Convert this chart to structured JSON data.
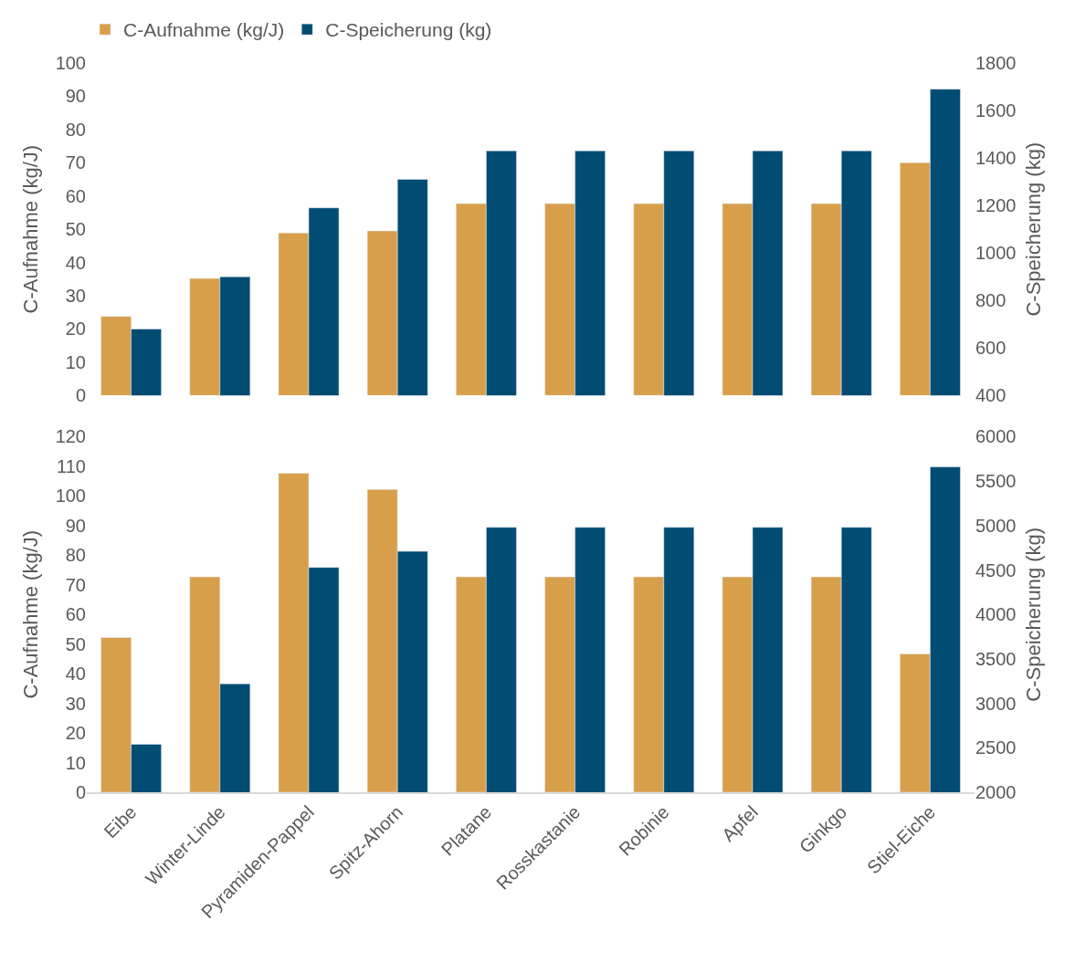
{
  "chart_data": [
    {
      "type": "bar",
      "categories": [
        "Eibe",
        "Winter-Linde",
        "Pyramiden-Pappel",
        "Spitz-Ahorn",
        "Platane",
        "Rosskastanie",
        "Robinie",
        "Apfel",
        "Ginkgo",
        "Stiel-Eiche"
      ],
      "series": [
        {
          "name": "C-Aufnahme (kg/J)",
          "color": "#d89f4b",
          "values": [
            23.8,
            35.2,
            48.9,
            49.5,
            57.7,
            57.7,
            57.7,
            57.7,
            57.7,
            70.0
          ]
        },
        {
          "name": "C-Speicherung (kg)",
          "color": "#004c73",
          "axis": "y2",
          "values": [
            680,
            900,
            1190,
            1310,
            1430,
            1430,
            1430,
            1430,
            1430,
            1690
          ]
        }
      ],
      "ylabel": "C-Aufnahme (kg/J)",
      "y2label": "C-Speicherung (kg)",
      "ylim": [
        0,
        100
      ],
      "yticks": [
        0,
        10,
        20,
        30,
        40,
        50,
        60,
        70,
        80,
        90,
        100
      ],
      "y2lim": [
        400,
        1800
      ],
      "y2ticks": [
        400,
        600,
        800,
        1000,
        1200,
        1400,
        1600,
        1800
      ],
      "tick_labels": "y",
      "legend": "top left"
    },
    {
      "type": "bar",
      "categories": [
        "Eibe",
        "Winter-Linde",
        "Pyramiden-Pappel",
        "Spitz-Ahorn",
        "Platane",
        "Rosskastanie",
        "Robinie",
        "Apfel",
        "Ginkgo",
        "Stiel-Eiche"
      ],
      "series": [
        {
          "color": "#d89f4b",
          "values": [
            52.2,
            72.7,
            107.7,
            102.2,
            72.7,
            72.7,
            72.7,
            72.7,
            72.7,
            46.7
          ]
        },
        {
          "color": "#004c73",
          "axis": "y2",
          "values": [
            2540,
            3220,
            4530,
            4710,
            4980,
            4980,
            4980,
            4980,
            4980,
            5660
          ]
        }
      ],
      "ylabel": "C-Aufnahme (kg/J)",
      "y2label": "C-Speicherung (kg)",
      "ylim": [
        0,
        120
      ],
      "yticks": [
        0,
        10,
        20,
        30,
        40,
        50,
        60,
        70,
        80,
        90,
        100,
        110,
        120
      ],
      "y2lim": [
        2000,
        6000
      ],
      "y2ticks": [
        2000,
        2500,
        3000,
        3500,
        4000,
        4500,
        5000,
        5500,
        6000
      ]
    }
  ]
}
